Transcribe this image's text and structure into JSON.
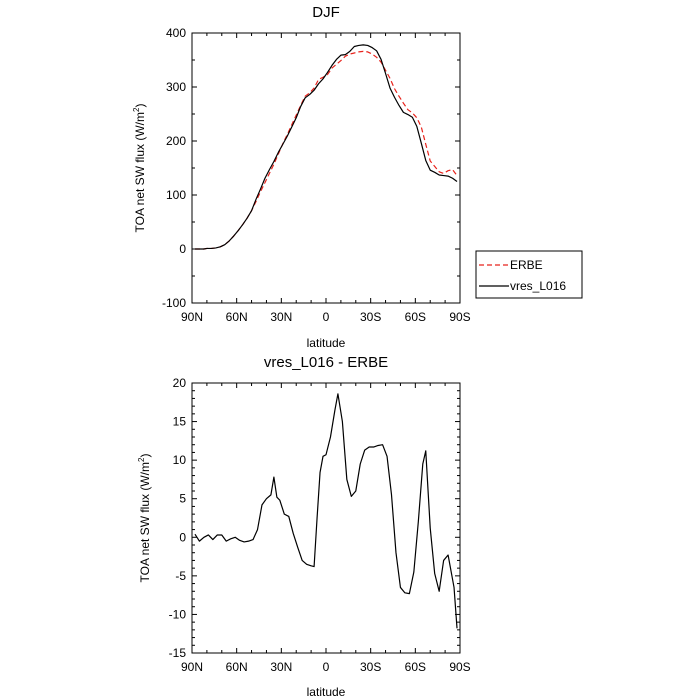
{
  "chart_data": [
    {
      "type": "line",
      "title": "DJF",
      "xlabel": "latitude",
      "ylabel_main": "TOA net SW flux (W/m",
      "ylabel_sup": "2",
      "ylabel_end": ")",
      "x_ticks": [
        90,
        60,
        30,
        0,
        -30,
        -60,
        -90
      ],
      "x_tick_labels": [
        "90N",
        "60N",
        "30N",
        "0",
        "30S",
        "60S",
        "90S"
      ],
      "xlim": [
        90,
        -90
      ],
      "ylim": [
        -100,
        400
      ],
      "y_ticks": [
        -100,
        0,
        100,
        200,
        300,
        400
      ],
      "y_tick_labels": [
        "-100",
        "0",
        "100",
        "200",
        "300",
        "400"
      ],
      "legend_position": "right",
      "series": [
        {
          "name": "ERBE",
          "color": "#e8231c",
          "dash": "dashed",
          "x": [
            88,
            85,
            82,
            80,
            77,
            74,
            71,
            68,
            65,
            62,
            59,
            56,
            53,
            50,
            47,
            44,
            41,
            38,
            35,
            32,
            29,
            26,
            23,
            20,
            17,
            14,
            11,
            8,
            5,
            2,
            -1,
            -4,
            -7,
            -10,
            -13,
            -16,
            -19,
            -22,
            -25,
            -28,
            -31,
            -34,
            -37,
            -40,
            -43,
            -46,
            -49,
            -52,
            -55,
            -58,
            -61,
            -64,
            -67,
            -70,
            -73,
            -76,
            -79,
            -82,
            -85,
            -88
          ],
          "y": [
            0,
            0,
            0,
            1,
            1,
            2,
            4,
            8,
            15,
            24,
            34,
            45,
            57,
            71,
            88,
            106,
            123,
            140,
            157,
            176,
            195,
            212,
            230,
            248,
            266,
            283,
            289,
            298,
            314,
            318,
            323,
            335,
            342,
            349,
            357,
            361,
            363,
            365,
            366,
            365,
            361,
            355,
            346,
            331,
            316,
            297,
            283,
            270,
            258,
            252,
            243,
            226,
            194,
            163,
            153,
            143,
            140,
            145,
            147,
            136
          ]
        },
        {
          "name": "vres_L016",
          "color": "#000000",
          "dash": "solid",
          "x": [
            88,
            85,
            82,
            80,
            77,
            74,
            71,
            68,
            65,
            62,
            59,
            56,
            53,
            50,
            47,
            44,
            41,
            38,
            35,
            32,
            29,
            26,
            23,
            20,
            17,
            14,
            11,
            8,
            5,
            2,
            -1,
            -4,
            -7,
            -10,
            -13,
            -16,
            -19,
            -22,
            -25,
            -28,
            -31,
            -34,
            -37,
            -40,
            -43,
            -46,
            -49,
            -52,
            -55,
            -58,
            -61,
            -64,
            -67,
            -70,
            -73,
            -76,
            -79,
            -82,
            -85,
            -88
          ],
          "y": [
            0,
            0,
            0,
            1,
            1,
            2,
            4,
            8,
            15,
            24,
            34,
            45,
            57,
            71,
            92,
            111,
            131,
            147,
            162,
            179,
            194,
            209,
            226,
            243,
            264,
            280,
            286,
            294,
            306,
            315,
            327,
            340,
            351,
            359,
            360,
            366,
            375,
            377,
            378,
            377,
            373,
            367,
            351,
            325,
            298,
            281,
            266,
            253,
            249,
            244,
            227,
            196,
            164,
            146,
            142,
            137,
            136,
            135,
            131,
            125
          ]
        }
      ]
    },
    {
      "type": "line",
      "title": "vres_L016 - ERBE",
      "xlabel": "latitude",
      "ylabel_main": "TOA net SW flux (W/m",
      "ylabel_sup": "2",
      "ylabel_end": ")",
      "x_ticks": [
        90,
        60,
        30,
        0,
        -30,
        -60,
        -90
      ],
      "x_tick_labels": [
        "90N",
        "60N",
        "30N",
        "0",
        "30S",
        "60S",
        "90S"
      ],
      "xlim": [
        90,
        -90
      ],
      "ylim": [
        -15,
        20
      ],
      "y_ticks": [
        -15,
        -10,
        -5,
        0,
        5,
        10,
        15,
        20
      ],
      "y_tick_labels": [
        "-15",
        "-10",
        "-5",
        "0",
        "5",
        "10",
        "15",
        "20"
      ],
      "series": [
        {
          "color": "#000000",
          "x": [
            88,
            85,
            82,
            79,
            76,
            73,
            70,
            67,
            64,
            61,
            58,
            55,
            52,
            49,
            46,
            43,
            40,
            37,
            35,
            33,
            31,
            28,
            25,
            22,
            19,
            16,
            13,
            10,
            8,
            6,
            4,
            2,
            0,
            -3,
            -6,
            -8,
            -11,
            -14,
            -17,
            -20,
            -23,
            -26,
            -29,
            -32,
            -35,
            -38,
            -41,
            -44,
            -47,
            -50,
            -53,
            -56,
            -59,
            -62,
            -65,
            -67,
            -70,
            -73,
            -76,
            -79,
            -82,
            -86,
            -88
          ],
          "y": [
            0.4,
            -0.5,
            0,
            0.3,
            -0.3,
            0.3,
            0.3,
            -0.5,
            -0.2,
            0,
            -0.4,
            -0.6,
            -0.5,
            -0.3,
            1,
            4.2,
            5,
            5.5,
            7.8,
            5.2,
            4.8,
            3,
            2.7,
            0.5,
            -1.3,
            -3,
            -3.5,
            -3.7,
            -3.8,
            2.5,
            8.4,
            10.5,
            10.7,
            13,
            16.5,
            18.6,
            15,
            7.5,
            5.3,
            6,
            9.5,
            11.3,
            11.7,
            11.7,
            11.9,
            12,
            10.5,
            5.5,
            -2,
            -6.5,
            -7.2,
            -7.3,
            -4.5,
            2,
            9.5,
            11.2,
            1.2,
            -4.7,
            -7,
            -3,
            -2.3,
            -6.5,
            -11.8
          ]
        }
      ]
    }
  ]
}
